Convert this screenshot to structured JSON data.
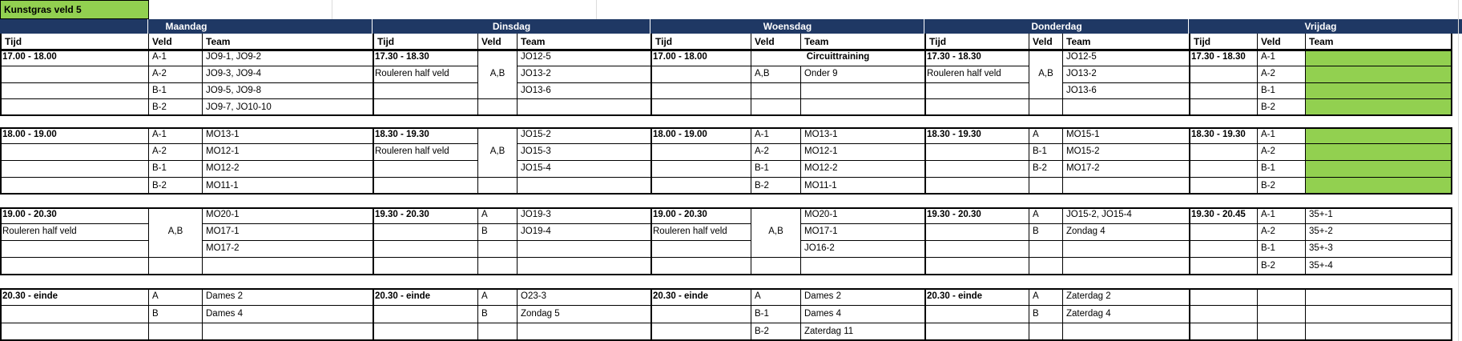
{
  "title": "Kunstgras veld 5",
  "column_headers": {
    "tijd": "Tijd",
    "veld": "Veld",
    "team": "Team"
  },
  "colors": {
    "header_bg": "#1f3864",
    "header_text": "#ffffff",
    "accent_green": "#92d050"
  },
  "days": [
    {
      "name": "Maandag",
      "blocks": [
        {
          "tijd_lines": [
            "17.00 - 18.00",
            "",
            "",
            ""
          ],
          "veld": [
            "A-1",
            "A-2",
            "B-1",
            "B-2"
          ],
          "team": [
            "JO9-1, JO9-2",
            "JO9-3, JO9-4",
            "JO9-5, JO9-8",
            "JO9-7, JO10-10"
          ]
        },
        {
          "tijd_lines": [
            "18.00 - 19.00",
            "",
            "",
            ""
          ],
          "veld": [
            "A-1",
            "A-2",
            "B-1",
            "B-2"
          ],
          "team": [
            "MO13-1",
            "MO12-1",
            "MO12-2",
            "MO11-1"
          ]
        },
        {
          "tijd_lines": [
            "19.00 - 20.30",
            "Rouleren half veld",
            "",
            ""
          ],
          "veld_merged": "A,B",
          "veld": [
            "",
            "",
            "",
            ""
          ],
          "team": [
            "MO20-1",
            "MO17-1",
            "MO17-2",
            ""
          ]
        },
        {
          "tijd_lines": [
            "20.30 - einde",
            "",
            ""
          ],
          "veld": [
            "A",
            "B",
            ""
          ],
          "team": [
            "Dames 2",
            "Dames 4",
            ""
          ]
        }
      ]
    },
    {
      "name": "Dinsdag",
      "blocks": [
        {
          "tijd_lines": [
            "17.30 - 18.30",
            "Rouleren half veld",
            "",
            ""
          ],
          "veld_merged": "A,B",
          "veld": [
            "",
            "",
            "",
            ""
          ],
          "team": [
            "JO12-5",
            "JO13-2",
            "JO13-6",
            ""
          ]
        },
        {
          "tijd_lines": [
            "18.30 - 19.30",
            "Rouleren half veld",
            "",
            ""
          ],
          "veld_merged": "A,B",
          "veld": [
            "",
            "",
            "",
            ""
          ],
          "team": [
            "JO15-2",
            "JO15-3",
            "JO15-4",
            ""
          ]
        },
        {
          "tijd_lines": [
            "19.30 - 20.30",
            "",
            "",
            ""
          ],
          "veld": [
            "A",
            "B",
            "",
            ""
          ],
          "team": [
            "JO19-3",
            "JO19-4",
            "",
            ""
          ]
        },
        {
          "tijd_lines": [
            "20.30 - einde",
            "",
            ""
          ],
          "veld": [
            "A",
            "B",
            ""
          ],
          "team": [
            "O23-3",
            "Zondag 5",
            ""
          ]
        }
      ]
    },
    {
      "name": "Woensdag",
      "blocks": [
        {
          "tijd_lines": [
            "17.00 - 18.00",
            "",
            "",
            ""
          ],
          "team_row1_merged": "Circuittraining",
          "veld": [
            "",
            "A,B",
            "",
            ""
          ],
          "team": [
            "",
            "Onder 9",
            "",
            ""
          ]
        },
        {
          "tijd_lines": [
            "18.00 - 19.00",
            "",
            "",
            ""
          ],
          "veld": [
            "A-1",
            "A-2",
            "B-1",
            "B-2"
          ],
          "team": [
            "MO13-1",
            "MO12-1",
            "MO12-2",
            "MO11-1"
          ]
        },
        {
          "tijd_lines": [
            "19.00 - 20.30",
            "Rouleren half veld",
            "",
            ""
          ],
          "veld_merged": "A,B",
          "veld": [
            "",
            "",
            "",
            ""
          ],
          "team": [
            "MO20-1",
            "MO17-1",
            "JO16-2",
            ""
          ]
        },
        {
          "tijd_lines": [
            "20.30 - einde",
            "",
            ""
          ],
          "veld": [
            "A",
            "B-1",
            "B-2"
          ],
          "team": [
            "Dames 2",
            "Dames 4",
            "Zaterdag 11"
          ]
        }
      ]
    },
    {
      "name": "Donderdag",
      "blocks": [
        {
          "tijd_lines": [
            "17.30 - 18.30",
            "Rouleren half veld",
            "",
            ""
          ],
          "veld_merged": "A,B",
          "veld": [
            "",
            "",
            "",
            ""
          ],
          "team": [
            "JO12-5",
            "JO13-2",
            "JO13-6",
            ""
          ]
        },
        {
          "tijd_lines": [
            "18.30 - 19.30",
            "",
            "",
            ""
          ],
          "veld": [
            "A",
            "B-1",
            "B-2",
            ""
          ],
          "team": [
            "MO15-1",
            "MO15-2",
            "MO17-2",
            ""
          ]
        },
        {
          "tijd_lines": [
            "19.30 - 20.30",
            "",
            "",
            ""
          ],
          "veld": [
            "A",
            "B",
            "",
            ""
          ],
          "team": [
            "JO15-2, JO15-4",
            "Zondag 4",
            "",
            ""
          ]
        },
        {
          "tijd_lines": [
            "20.30 - einde",
            "",
            ""
          ],
          "veld": [
            "A",
            "B",
            ""
          ],
          "team": [
            "Zaterdag 2",
            "Zaterdag 4",
            ""
          ]
        }
      ]
    },
    {
      "name": "Vrijdag",
      "blocks": [
        {
          "tijd_lines": [
            "17.30 - 18.30",
            "",
            "",
            ""
          ],
          "veld": [
            "A-1",
            "A-2",
            "B-1",
            "B-2"
          ],
          "team": [
            "",
            "",
            "",
            ""
          ],
          "team_fill": "green"
        },
        {
          "tijd_lines": [
            "18.30 - 19.30",
            "",
            "",
            ""
          ],
          "veld": [
            "A-1",
            "A-2",
            "B-1",
            "B-2"
          ],
          "team": [
            "",
            "",
            "",
            ""
          ],
          "team_fill": "green"
        },
        {
          "tijd_lines": [
            "19.30 - 20.45",
            "",
            "",
            ""
          ],
          "veld": [
            "A-1",
            "A-2",
            "B-1",
            "B-2"
          ],
          "team": [
            "35+-1",
            "35+-2",
            "35+-3",
            "35+-4"
          ]
        },
        {
          "tijd_lines": [
            "",
            "",
            ""
          ],
          "veld": [
            "",
            "",
            ""
          ],
          "team": [
            "",
            "",
            ""
          ]
        }
      ]
    }
  ]
}
